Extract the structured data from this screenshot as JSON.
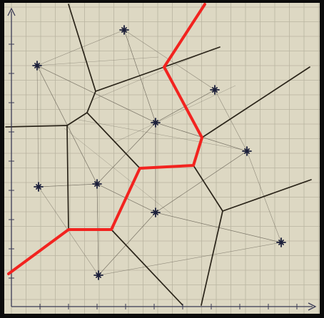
{
  "image": {
    "frame_color": "#0b0b0b",
    "paper_color": "#ddd8c3",
    "grid_color": "#b9b4a0",
    "voronoi_line_color": "#2a2419",
    "delaunay_line_color": "#6f6a5d",
    "axis_color": "#3a3a55",
    "point_color": "#1b1f3a",
    "highlight_path_color": "#f2231f"
  },
  "axes": {
    "x_arrow_icon": "arrow-right-icon",
    "y_arrow_icon": "arrow-up-icon"
  }
}
